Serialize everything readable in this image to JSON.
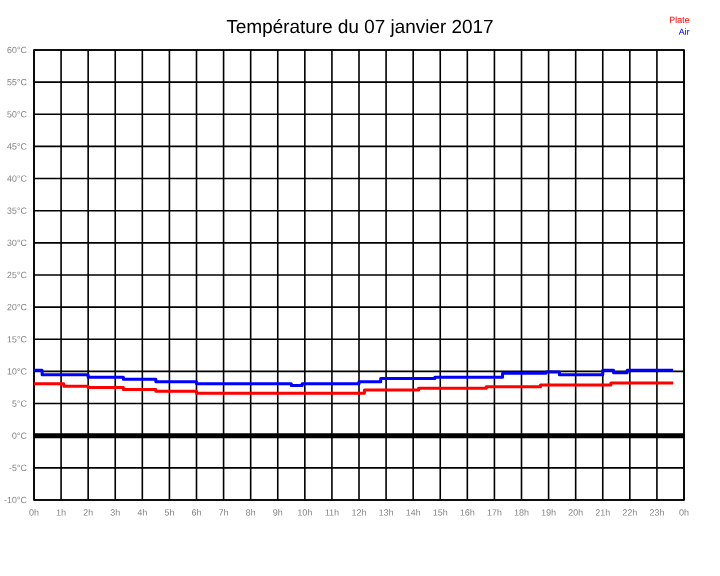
{
  "chart_data": {
    "type": "step",
    "title": "Température du 07 janvier 2017",
    "xlim": [
      "2017-01-07T00:00",
      "2017-01-08T00:00"
    ],
    "ylim": [
      -10,
      60
    ],
    "xticks": [
      {
        "value": "2017-01-07T00:00",
        "label": "0h"
      },
      {
        "value": "2017-01-07T01:00",
        "label": "1h"
      },
      {
        "value": "2017-01-07T02:00",
        "label": "2h"
      },
      {
        "value": "2017-01-07T03:00",
        "label": "3h"
      },
      {
        "value": "2017-01-07T04:00",
        "label": "4h"
      },
      {
        "value": "2017-01-07T05:00",
        "label": "5h"
      },
      {
        "value": "2017-01-07T06:00",
        "label": "6h"
      },
      {
        "value": "2017-01-07T07:00",
        "label": "7h"
      },
      {
        "value": "2017-01-07T08:00",
        "label": "8h"
      },
      {
        "value": "2017-01-07T09:00",
        "label": "9h"
      },
      {
        "value": "2017-01-07T10:00",
        "label": "10h"
      },
      {
        "value": "2017-01-07T11:00",
        "label": "11h"
      },
      {
        "value": "2017-01-07T12:00",
        "label": "12h"
      },
      {
        "value": "2017-01-07T13:00",
        "label": "13h"
      },
      {
        "value": "2017-01-07T14:00",
        "label": "14h"
      },
      {
        "value": "2017-01-07T15:00",
        "label": "15h"
      },
      {
        "value": "2017-01-07T16:00",
        "label": "16h"
      },
      {
        "value": "2017-01-07T17:00",
        "label": "17h"
      },
      {
        "value": "2017-01-07T18:00",
        "label": "18h"
      },
      {
        "value": "2017-01-07T19:00",
        "label": "19h"
      },
      {
        "value": "2017-01-07T20:00",
        "label": "20h"
      },
      {
        "value": "2017-01-07T21:00",
        "label": "21h"
      },
      {
        "value": "2017-01-07T22:00",
        "label": "22h"
      },
      {
        "value": "2017-01-07T23:00",
        "label": "23h"
      },
      {
        "value": "2017-01-08T00:00",
        "label": "0h"
      }
    ],
    "yticks": [
      {
        "value": -10,
        "label": "-10°C"
      },
      {
        "value": -5,
        "label": "-5°C"
      },
      {
        "value": 0,
        "label": "0°C"
      },
      {
        "value": 5,
        "label": "5°C"
      },
      {
        "value": 10,
        "label": "10°C"
      },
      {
        "value": 15,
        "label": "15°C"
      },
      {
        "value": 20,
        "label": "20°C"
      },
      {
        "value": 25,
        "label": "25°C"
      },
      {
        "value": 30,
        "label": "30°C"
      },
      {
        "value": 35,
        "label": "35°C"
      },
      {
        "value": 40,
        "label": "40°C"
      },
      {
        "value": 45,
        "label": "45°C"
      },
      {
        "value": 50,
        "label": "50°C"
      },
      {
        "value": 55,
        "label": "55°C"
      },
      {
        "value": 60,
        "label": "60°C"
      }
    ],
    "grid": true,
    "legend": "top right",
    "ref_lines": [
      {
        "axis": "y",
        "value": 0,
        "color": "#000000"
      }
    ],
    "series": [
      {
        "name": "Plate",
        "color": "#ff0000",
        "x": [
          "2017-01-07T00:00",
          "2017-01-07T01:06",
          "2017-01-07T02:00",
          "2017-01-07T03:18",
          "2017-01-07T04:30",
          "2017-01-07T06:00",
          "2017-01-07T12:12",
          "2017-01-07T14:12",
          "2017-01-07T16:42",
          "2017-01-07T18:42",
          "2017-01-07T21:18",
          "2017-01-07T23:36"
        ],
        "values": [
          8.1,
          7.7,
          7.5,
          7.2,
          6.9,
          6.6,
          7.1,
          7.4,
          7.6,
          7.9,
          8.2,
          8.2
        ]
      },
      {
        "name": "Air",
        "color": "#0000ff",
        "x": [
          "2017-01-07T00:00",
          "2017-01-07T00:18",
          "2017-01-07T02:00",
          "2017-01-07T03:18",
          "2017-01-07T04:30",
          "2017-01-07T06:00",
          "2017-01-07T09:30",
          "2017-01-07T09:54",
          "2017-01-07T12:00",
          "2017-01-07T12:48",
          "2017-01-07T14:48",
          "2017-01-07T17:18",
          "2017-01-07T18:54",
          "2017-01-07T19:24",
          "2017-01-07T21:00",
          "2017-01-07T21:24",
          "2017-01-07T21:54",
          "2017-01-07T23:36"
        ],
        "values": [
          10.2,
          9.5,
          9.1,
          8.8,
          8.4,
          8.1,
          7.8,
          8.1,
          8.4,
          8.9,
          9.1,
          9.7,
          9.9,
          9.5,
          10.2,
          9.8,
          10.2,
          10.2
        ]
      }
    ]
  }
}
